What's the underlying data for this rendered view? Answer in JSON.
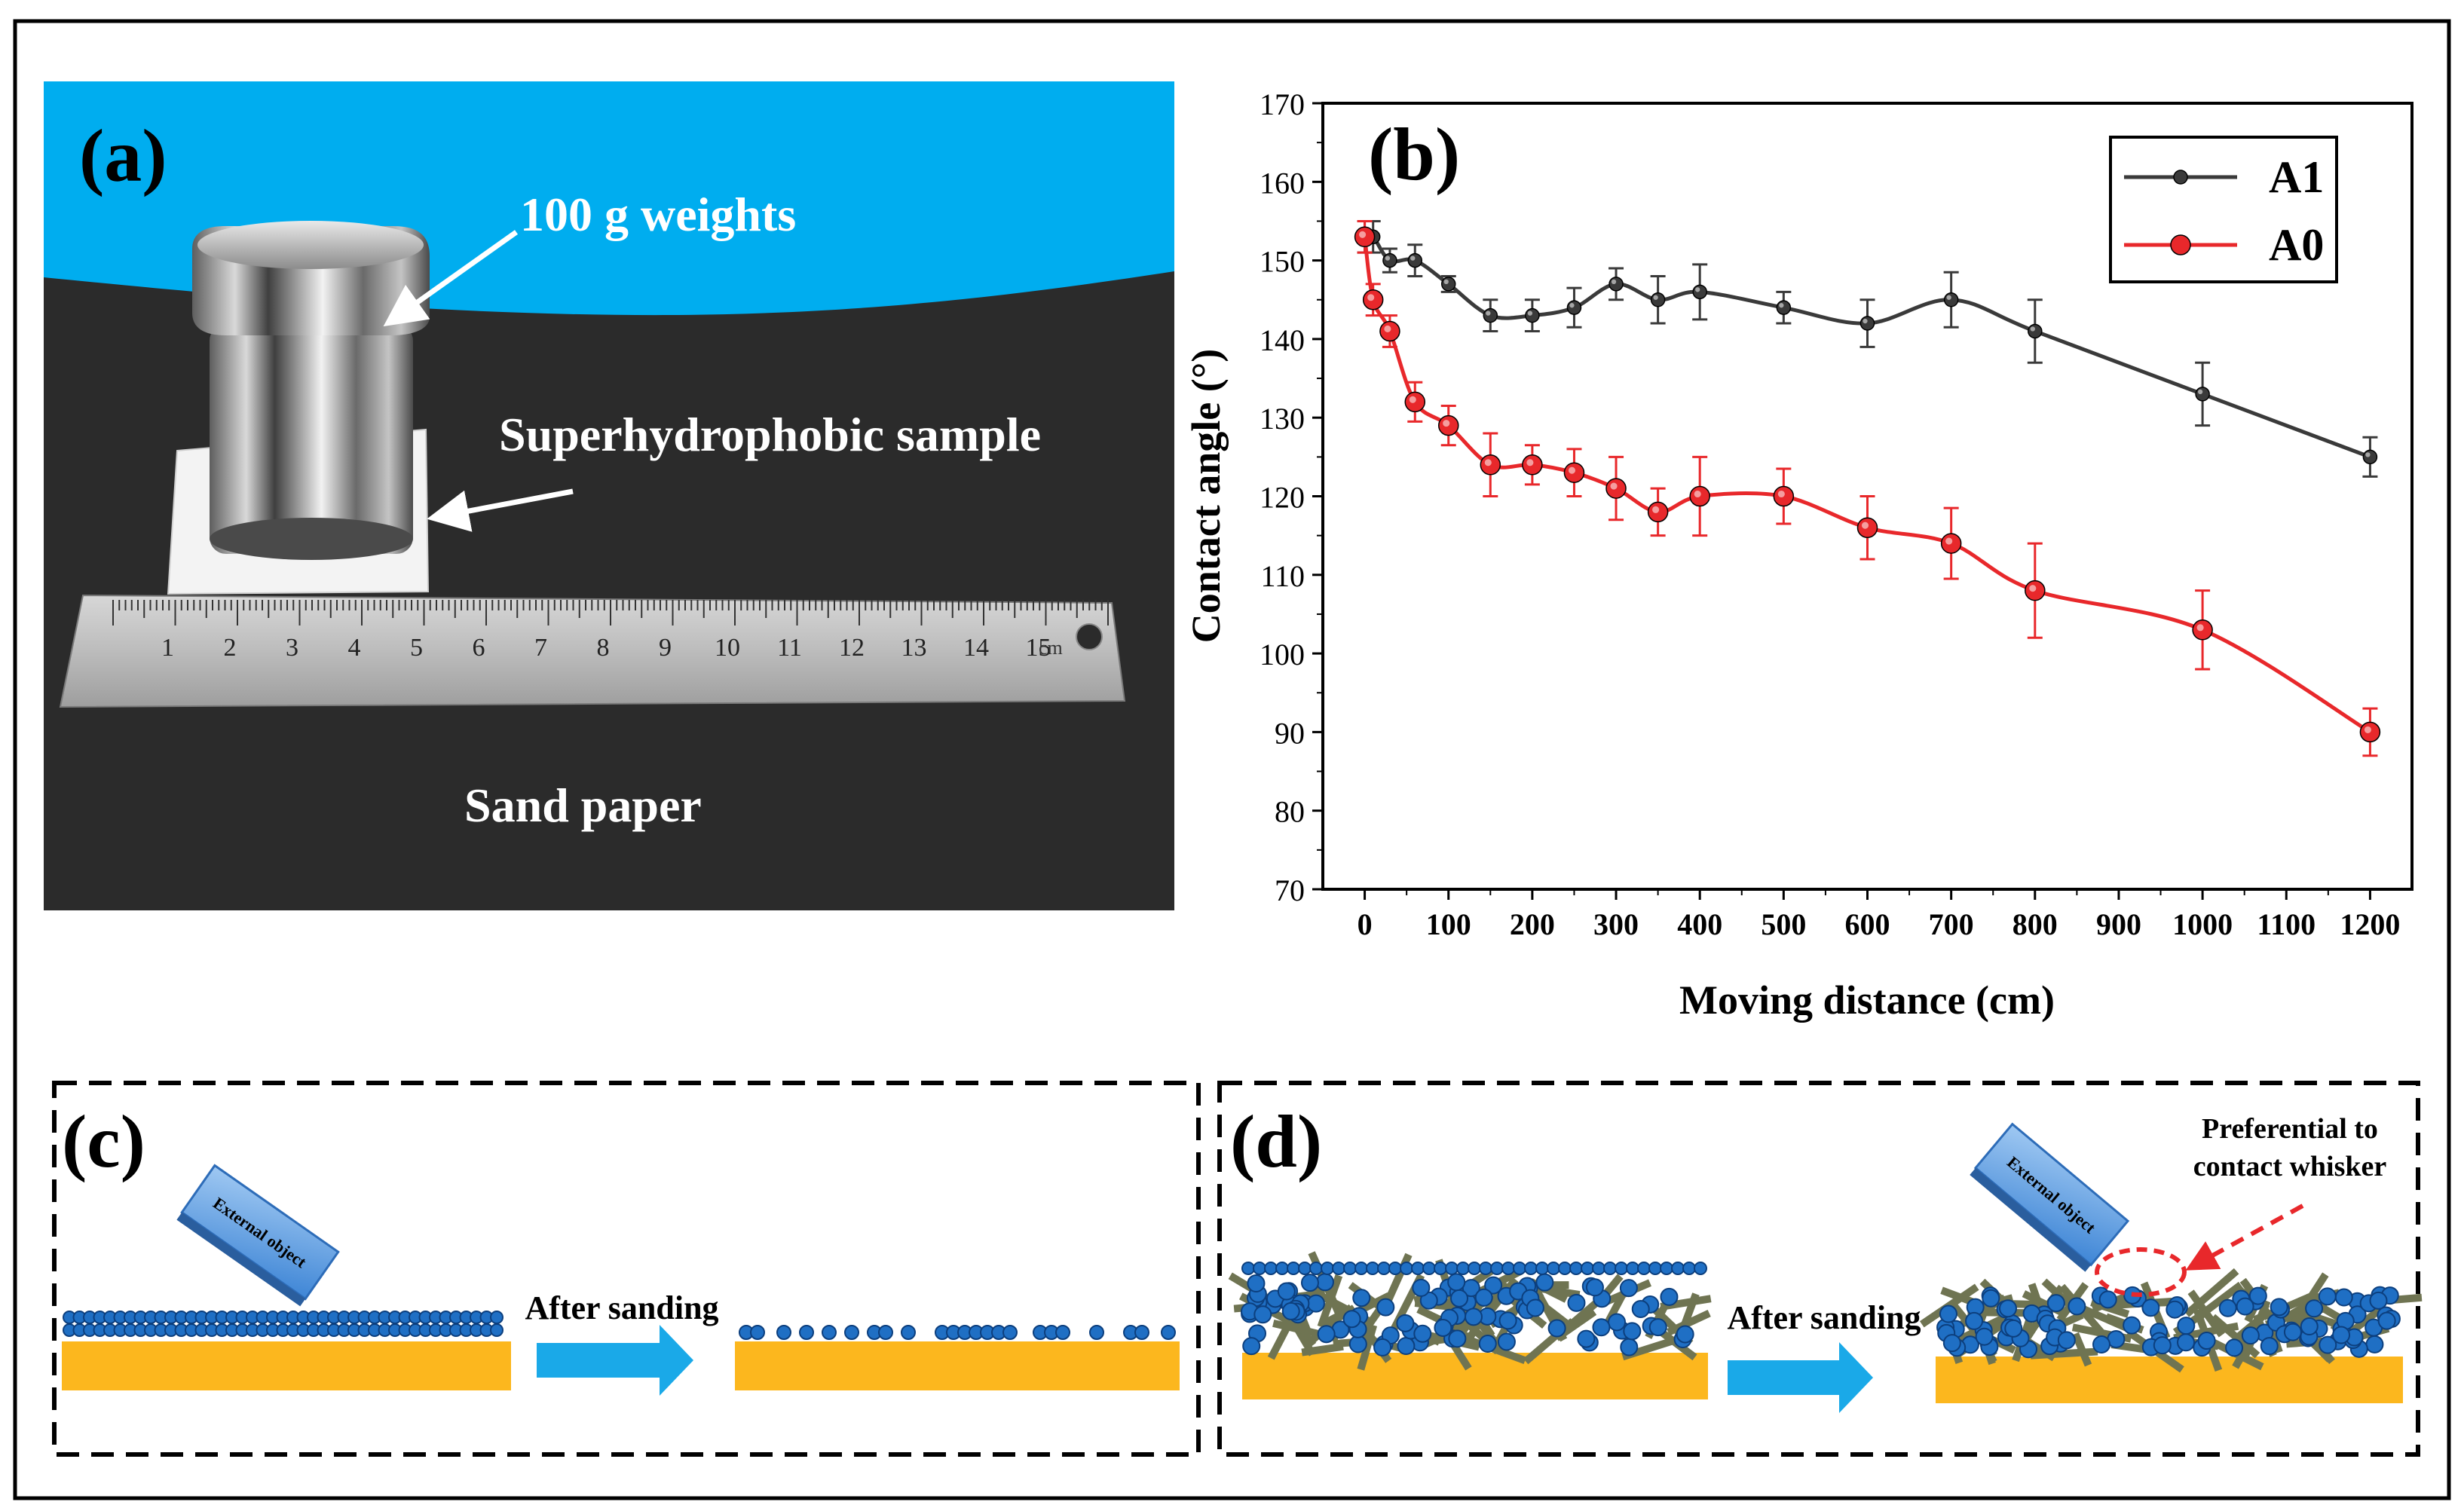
{
  "panel_a": {
    "letter": "(a)",
    "label_weights": "100 g weights",
    "label_sample": "Superhydrophobic sample",
    "label_paper": "Sand paper",
    "ruler_numbers": [
      "1",
      "2",
      "3",
      "4",
      "5",
      "6",
      "7",
      "8",
      "9",
      "10",
      "11",
      "12",
      "13",
      "14",
      "15"
    ],
    "ruler_unit": "cm",
    "colors": {
      "sky": "#00adef",
      "paper": "#2b2b2b",
      "label": "#ffffff"
    }
  },
  "panel_b": {
    "letter": "(b)"
  },
  "chart_data": {
    "type": "line",
    "title": "",
    "xlabel": "Moving distance (cm)",
    "ylabel": "Contact angle (°)",
    "xlim": [
      -50,
      1250
    ],
    "ylim": [
      70,
      170
    ],
    "xticks": [
      0,
      100,
      200,
      300,
      400,
      500,
      600,
      700,
      800,
      900,
      1000,
      1100,
      1200
    ],
    "yticks": [
      70,
      80,
      90,
      100,
      110,
      120,
      130,
      140,
      150,
      160,
      170
    ],
    "legend_position": "top-right",
    "grid": false,
    "x": [
      0,
      10,
      30,
      60,
      100,
      150,
      200,
      250,
      300,
      350,
      400,
      500,
      600,
      700,
      800,
      1000,
      1200
    ],
    "series": [
      {
        "name": "A1",
        "color": "#3a3a3a",
        "values": [
          153,
          153,
          150,
          150,
          147,
          143,
          143,
          144,
          147,
          145,
          146,
          144,
          142,
          145,
          141,
          133,
          125
        ],
        "errors": [
          2,
          2,
          1.5,
          2,
          1,
          2,
          2,
          2.5,
          2,
          3,
          3.5,
          2,
          3,
          3.5,
          4,
          4,
          2.5
        ]
      },
      {
        "name": "A0",
        "color": "#e8282b",
        "values": [
          153,
          145,
          141,
          132,
          129,
          124,
          124,
          123,
          121,
          118,
          120,
          120,
          116,
          114,
          108,
          103,
          90
        ],
        "errors": [
          2,
          2,
          2,
          2.5,
          2.5,
          4,
          2.5,
          3,
          4,
          3,
          5,
          3.5,
          4,
          4.5,
          6,
          5,
          3
        ]
      }
    ]
  },
  "panel_c": {
    "letter": "(c)",
    "object_label": "External object",
    "arrow_label": "After sanding"
  },
  "panel_d": {
    "letter": "(d)",
    "object_label": "External object",
    "arrow_label": "After sanding",
    "note_line1": "Preferential to",
    "note_line2": "contact whisker"
  },
  "colors": {
    "substrate": "#fcb71e",
    "particle": "#1f6fc4",
    "particle_edge": "#0c3f7e",
    "arrow": "#1aa9e8",
    "whisker": "#6f7452",
    "highlight": "#e8282b"
  }
}
